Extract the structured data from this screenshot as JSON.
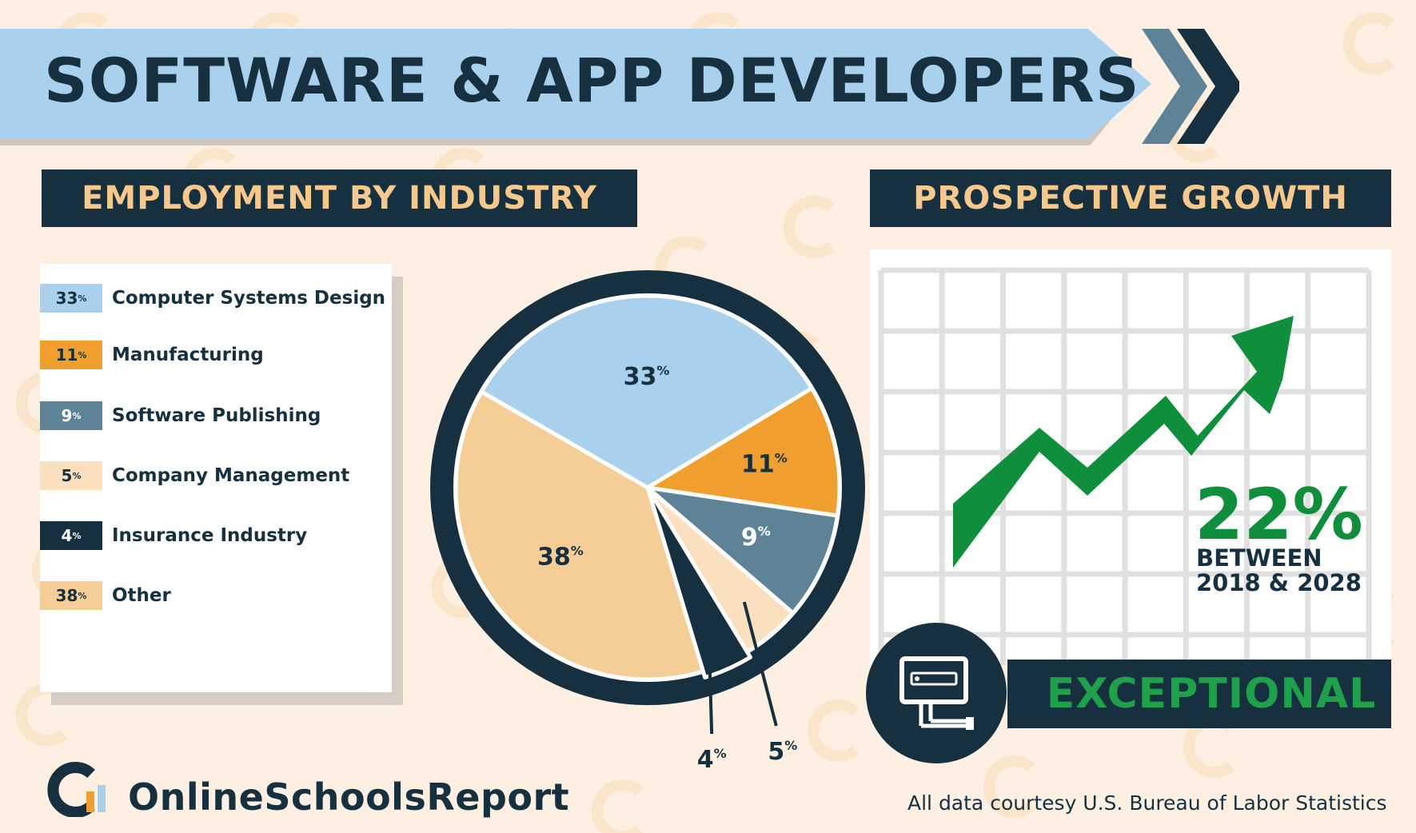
{
  "title": "SOFTWARE & APP DEVELOPERS",
  "sections": {
    "employment": "EMPLOYMENT BY INDUSTRY",
    "growth": "PROSPECTIVE GROWTH"
  },
  "chart_data": {
    "type": "pie",
    "title": "EMPLOYMENT BY INDUSTRY",
    "unit": "%",
    "slices": [
      {
        "label": "Computer Systems Design",
        "value": 33,
        "color": "#a9d0ec",
        "text_color": "#17303f"
      },
      {
        "label": "Manufacturing",
        "value": 11,
        "color": "#f09f2e",
        "text_color": "#17303f"
      },
      {
        "label": "Software Publishing",
        "value": 9,
        "color": "#5f8396",
        "text_color": "#ffffff"
      },
      {
        "label": "Company Management",
        "value": 5,
        "color": "#fae0bf",
        "text_color": "#17303f"
      },
      {
        "label": "Insurance Industry",
        "value": 4,
        "color": "#17303f",
        "text_color": "#ffffff"
      },
      {
        "label": "Other",
        "value": 38,
        "color": "#f5cd96",
        "text_color": "#17303f"
      }
    ]
  },
  "growth": {
    "value": "22%",
    "line1": "BETWEEN",
    "line2": "2018 & 2028",
    "rating": "EXCEPTIONAL"
  },
  "brand": {
    "name": "OnlineSchoolsReport"
  },
  "credit": "All data courtesy U.S. Bureau of Labor Statistics",
  "colors": {
    "navy": "#17303f",
    "light_blue": "#a9d0ec",
    "orange": "#f09f2e",
    "slate": "#5f8396",
    "green": "#0f8f3c",
    "cream": "#fdf0e2",
    "header_text": "#f5c98e"
  },
  "icons": [
    "chevron-right-icon",
    "computer-monitor-icon",
    "logo-icon"
  ]
}
